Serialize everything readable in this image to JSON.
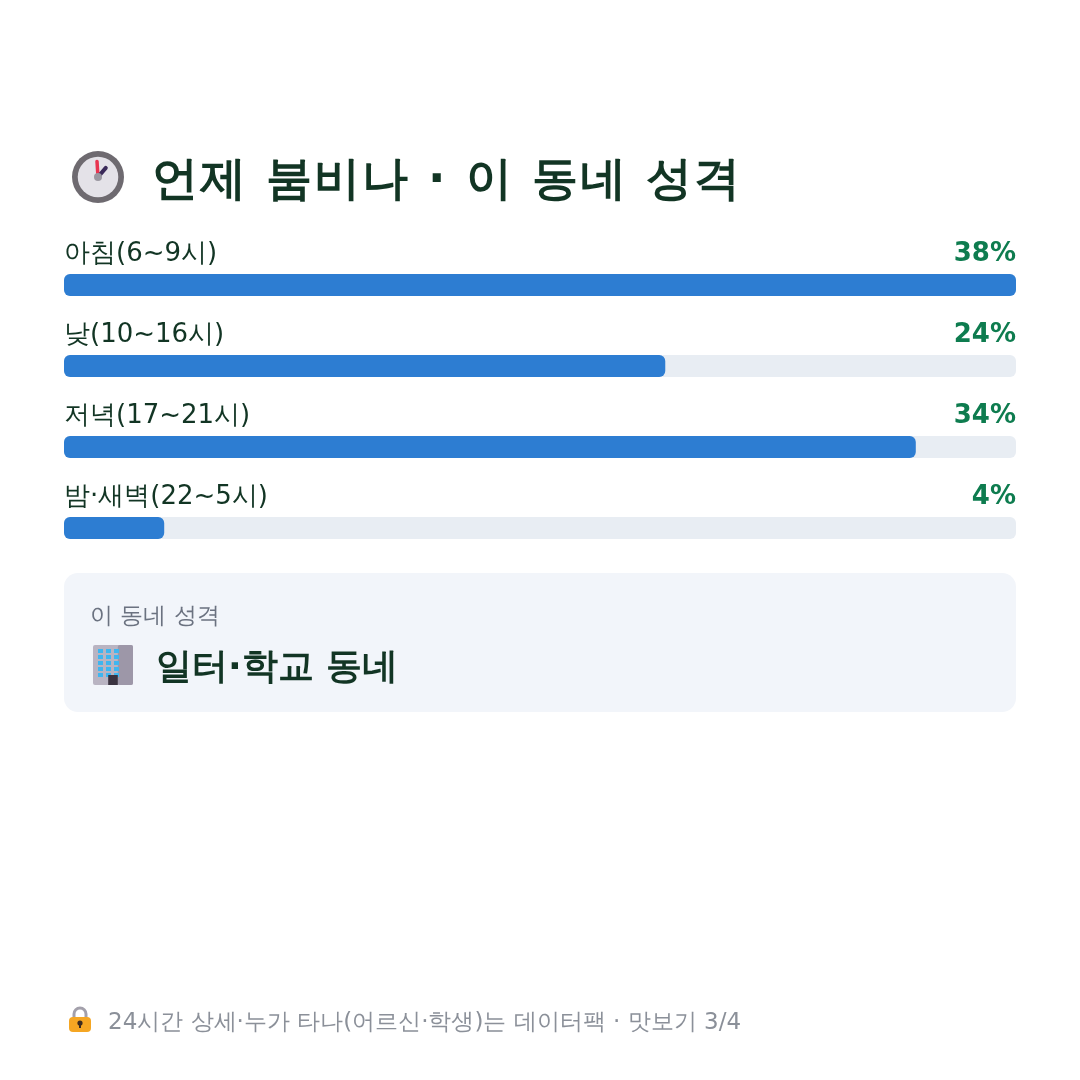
{
  "chart_data": {
    "type": "bar",
    "orientation": "horizontal",
    "title": "언제 붐비나 · 이 동네 성격",
    "categories": [
      "아침(6~9시)",
      "낮(10~16시)",
      "저녁(17~21시)",
      "밤·새벽(22~5시)"
    ],
    "values": [
      38,
      24,
      34,
      4
    ],
    "value_labels": [
      "38%",
      "24%",
      "34%",
      "4%"
    ],
    "color": "#2d7dd2",
    "xlim": [
      0,
      38
    ],
    "tick_labels": "y",
    "annotations": [
      "이 동네 성격",
      "일터·학교 동네",
      "24시간 상세·누가 타나(어르신·학생)는 데이터팩 · 맛보기 3/4"
    ]
  }
}
